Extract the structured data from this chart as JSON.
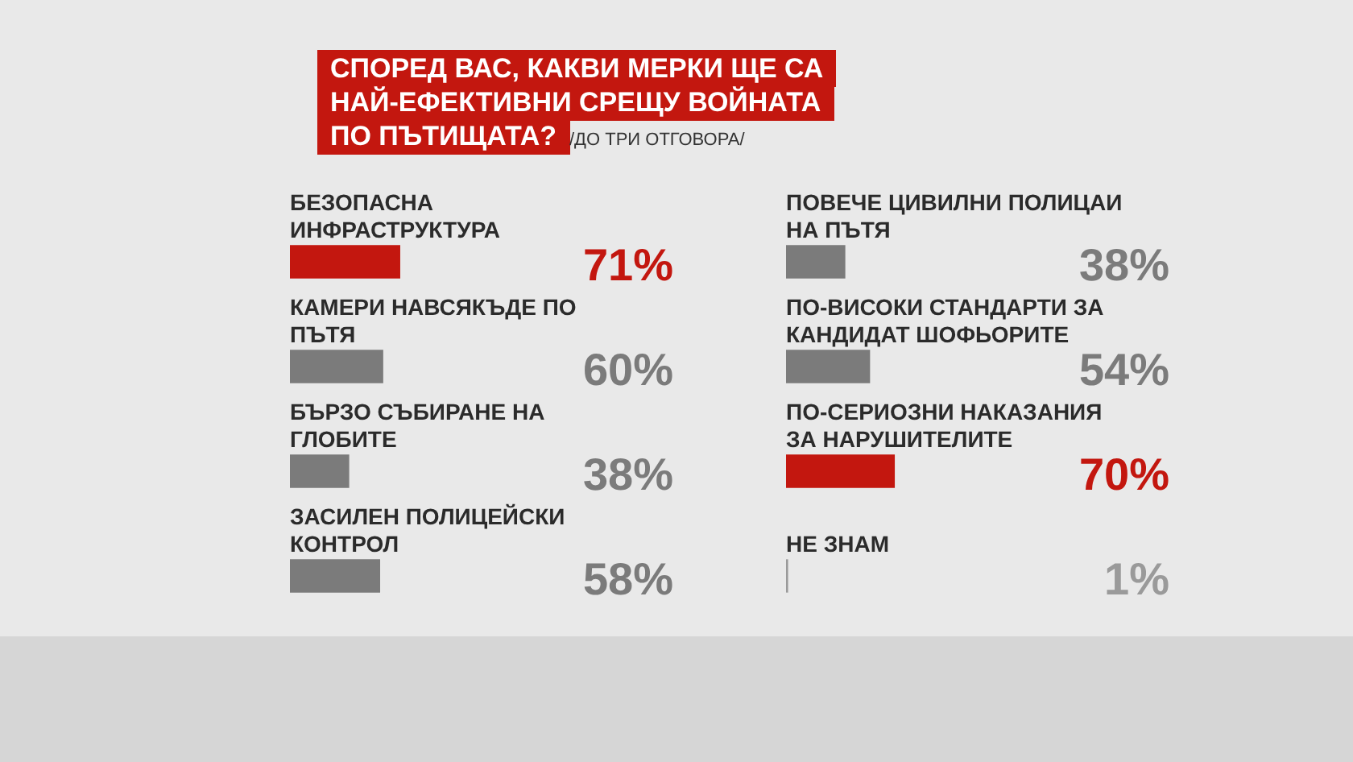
{
  "chart_data": [
    {
      "type": "bar",
      "orientation": "horizontal",
      "title": "СПОРЕД ВАС, КАКВИ МЕРКИ ЩЕ СА НАЙ-ЕФЕКТИВНИ СРЕЩУ ВОЙНАТА ПО ПЪТИЩАТА?",
      "subtitle": "/ДО ТРИ ОТГОВОРА/",
      "categories": [
        "БЕЗОПАСНА ИНФРАСТРУКТУРА",
        "КАМЕРИ НАВСЯКЪДЕ ПО ПЪТЯ",
        "БЪРЗО СЪБИРАНЕ НА ГЛОБИТЕ",
        "ЗАСИЛЕН ПОЛИЦЕЙСКИ КОНТРОЛ"
      ],
      "values": [
        71,
        60,
        38,
        58
      ],
      "colors": [
        "#c3170f",
        "#7b7b7b",
        "#7b7b7b",
        "#7b7b7b"
      ],
      "value_labels": [
        "71%",
        "60%",
        "38%",
        "58%"
      ]
    },
    {
      "type": "bar",
      "orientation": "horizontal",
      "categories": [
        "ПОВЕЧЕ ЦИВИЛНИ ПОЛИЦАИ НА ПЪТЯ",
        "ПО-ВИСОКИ СТАНДАРТИ ЗА КАНДИДАТ ШОФЬОРИТЕ",
        "ПО-СЕРИОЗНИ НАКАЗАНИЯ ЗА НАРУШИТЕЛИТЕ",
        "НЕ ЗНАМ"
      ],
      "values": [
        38,
        54,
        70,
        1
      ],
      "colors": [
        "#7b7b7b",
        "#7b7b7b",
        "#c3170f",
        "#9a9a9a"
      ],
      "value_labels": [
        "38%",
        "54%",
        "70%",
        "1%"
      ]
    }
  ]
}
